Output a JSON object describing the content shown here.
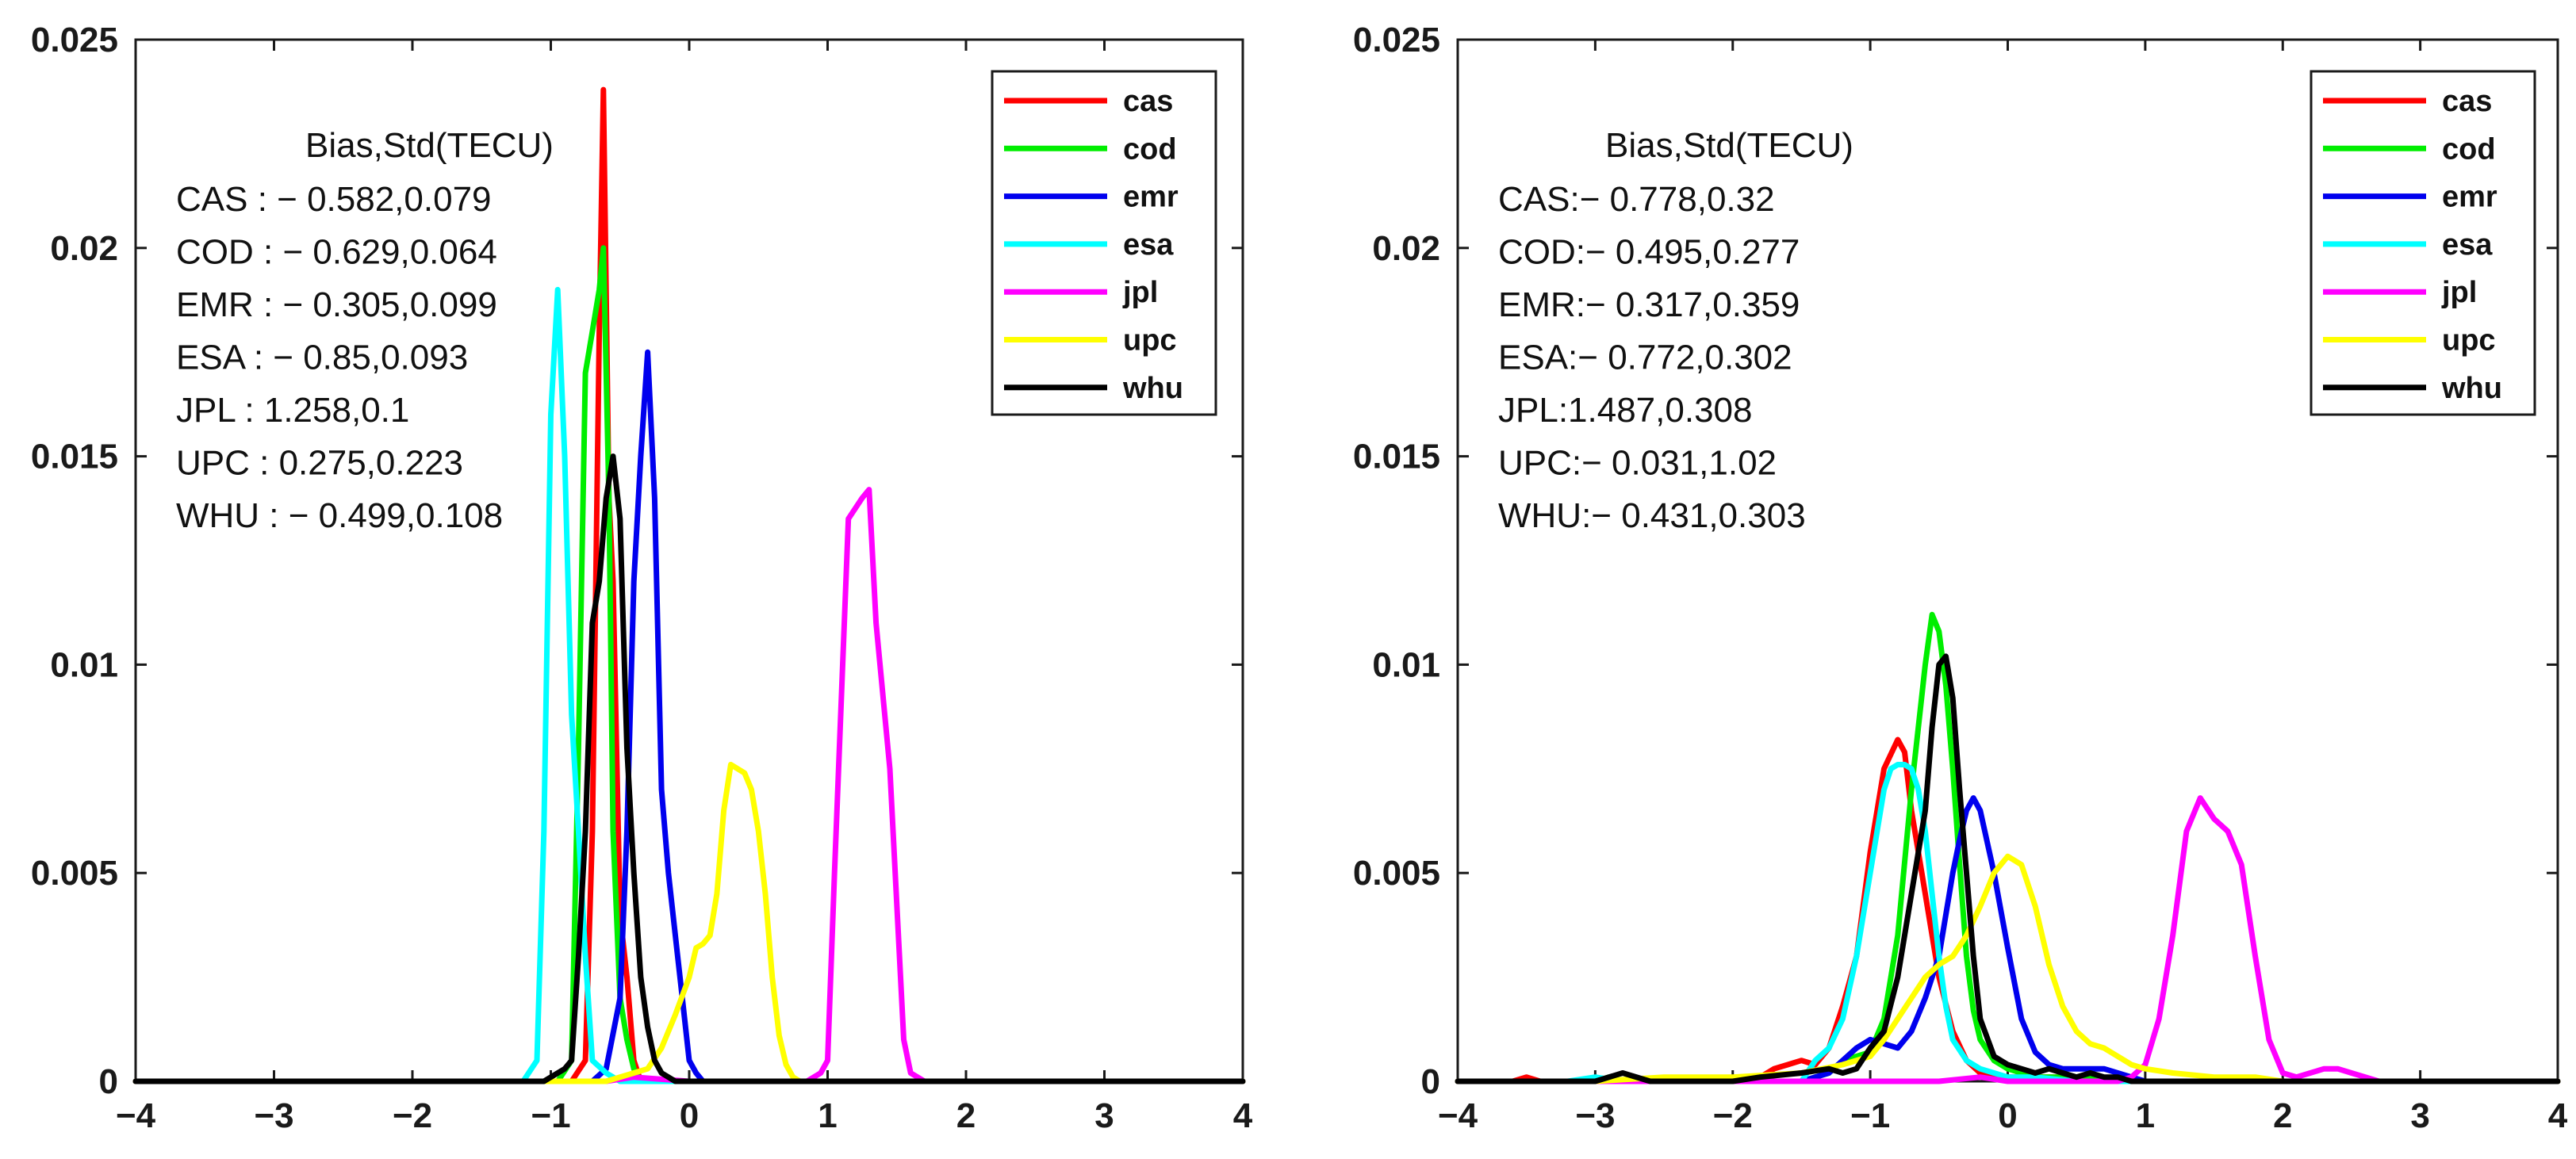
{
  "chart_data": [
    {
      "type": "line",
      "panel": "left",
      "xlim": [
        -4,
        4
      ],
      "ylim": [
        0,
        0.025
      ],
      "xticks": [
        "−4",
        "−3",
        "−2",
        "−1",
        "0",
        "1",
        "2",
        "3",
        "4"
      ],
      "yticks": [
        "0",
        "0.005",
        "0.01",
        "0.015",
        "0.02",
        "0.025"
      ],
      "legend_position": "top-right",
      "stats_title": "Bias,Std(TECU)",
      "stats": [
        "CAS : − 0.582,0.079",
        "COD : − 0.629,0.064",
        "EMR : − 0.305,0.099",
        "ESA : − 0.85,0.093",
        "JPL : 1.258,0.1",
        "UPC : 0.275,0.223",
        "WHU : − 0.499,0.108"
      ],
      "series": [
        {
          "name": "cas",
          "color": "#ff0000",
          "x": [
            -4,
            -1.0,
            -0.85,
            -0.75,
            -0.7,
            -0.65,
            -0.62,
            -0.58,
            -0.55,
            -0.5,
            -0.45,
            -0.4,
            -0.35,
            -0.3,
            4
          ],
          "y": [
            0,
            0,
            0,
            0.0005,
            0.006,
            0.018,
            0.0238,
            0.014,
            0.012,
            0.004,
            0.0025,
            0.0005,
            0,
            0,
            0
          ]
        },
        {
          "name": "cod",
          "color": "#00ee00",
          "x": [
            -4,
            -0.95,
            -0.85,
            -0.8,
            -0.75,
            -0.7,
            -0.65,
            -0.62,
            -0.58,
            -0.55,
            -0.5,
            -0.45,
            -0.4,
            -0.35,
            4
          ],
          "y": [
            0,
            0,
            0.0005,
            0.008,
            0.017,
            0.018,
            0.019,
            0.02,
            0.014,
            0.006,
            0.002,
            0.001,
            0.0003,
            0,
            0
          ]
        },
        {
          "name": "emr",
          "color": "#0000ee",
          "x": [
            -4,
            -0.7,
            -0.6,
            -0.5,
            -0.45,
            -0.4,
            -0.35,
            -0.3,
            -0.25,
            -0.2,
            -0.15,
            -0.1,
            -0.05,
            0,
            0.05,
            0.1,
            4
          ],
          "y": [
            0,
            0,
            0.0003,
            0.002,
            0.006,
            0.012,
            0.015,
            0.0175,
            0.014,
            0.007,
            0.005,
            0.0035,
            0.002,
            0.0005,
            0.0002,
            0,
            0
          ]
        },
        {
          "name": "esa",
          "color": "#00ffff",
          "x": [
            -4,
            -1.2,
            -1.1,
            -1.05,
            -1.0,
            -0.95,
            -0.9,
            -0.85,
            -0.8,
            -0.75,
            -0.7,
            -0.6,
            -0.5,
            4
          ],
          "y": [
            0,
            0,
            0.0005,
            0.006,
            0.016,
            0.019,
            0.015,
            0.0088,
            0.006,
            0.003,
            0.0005,
            0.0002,
            0,
            0
          ]
        },
        {
          "name": "jpl",
          "color": "#ff00ff",
          "x": [
            -4,
            -0.6,
            -0.4,
            0,
            0.85,
            0.95,
            1.0,
            1.05,
            1.15,
            1.25,
            1.3,
            1.35,
            1.45,
            1.55,
            1.6,
            1.7,
            4
          ],
          "y": [
            0,
            0,
            0.0001,
            0,
            0,
            0.0002,
            0.0005,
            0.005,
            0.0135,
            0.014,
            0.0142,
            0.011,
            0.0075,
            0.001,
            0.0002,
            0,
            0
          ]
        },
        {
          "name": "upc",
          "color": "#ffff00",
          "x": [
            -4,
            -0.6,
            -0.4,
            -0.3,
            -0.2,
            -0.1,
            0,
            0.05,
            0.1,
            0.15,
            0.2,
            0.25,
            0.3,
            0.35,
            0.4,
            0.45,
            0.5,
            0.55,
            0.6,
            0.65,
            0.7,
            0.75,
            0.8,
            0.85,
            0.9,
            4
          ],
          "y": [
            0,
            0,
            0.0002,
            0.0003,
            0.0008,
            0.0016,
            0.0025,
            0.0032,
            0.0033,
            0.0035,
            0.0045,
            0.0065,
            0.0076,
            0.0075,
            0.0074,
            0.007,
            0.006,
            0.0045,
            0.0025,
            0.0011,
            0.0004,
            0.0001,
            0,
            0,
            0,
            0
          ]
        },
        {
          "name": "whu",
          "color": "#000000",
          "x": [
            -4,
            -1.05,
            -1.0,
            -0.9,
            -0.85,
            -0.8,
            -0.75,
            -0.7,
            -0.65,
            -0.6,
            -0.55,
            -0.5,
            -0.45,
            -0.4,
            -0.35,
            -0.3,
            -0.25,
            -0.2,
            -0.15,
            -0.1,
            -0.05,
            4
          ],
          "y": [
            0,
            0,
            0.0001,
            0.0003,
            0.0005,
            0.003,
            0.006,
            0.011,
            0.012,
            0.014,
            0.015,
            0.0135,
            0.008,
            0.005,
            0.0025,
            0.0013,
            0.0005,
            0.0002,
            0.0001,
            0,
            0,
            0
          ]
        }
      ]
    },
    {
      "type": "line",
      "panel": "right",
      "xlim": [
        -4,
        4
      ],
      "ylim": [
        0,
        0.025
      ],
      "xticks": [
        "−4",
        "−3",
        "−2",
        "−1",
        "0",
        "1",
        "2",
        "3",
        "4"
      ],
      "yticks": [
        "0",
        "0.005",
        "0.01",
        "0.015",
        "0.02",
        "0.025"
      ],
      "legend_position": "top-right",
      "stats_title": "Bias,Std(TECU)",
      "stats": [
        "CAS:− 0.778,0.32",
        "COD:− 0.495,0.277",
        "EMR:− 0.317,0.359",
        "ESA:− 0.772,0.302",
        "JPL:1.487,0.308",
        "UPC:− 0.031,1.02",
        "WHU:− 0.431,0.303"
      ],
      "series": [
        {
          "name": "cas",
          "color": "#ff0000",
          "x": [
            -4,
            -3.6,
            -3.5,
            -3.4,
            -3.0,
            -2.5,
            -2.0,
            -1.8,
            -1.7,
            -1.6,
            -1.5,
            -1.4,
            -1.3,
            -1.2,
            -1.1,
            -1.0,
            -0.9,
            -0.8,
            -0.75,
            -0.7,
            -0.6,
            -0.5,
            -0.4,
            -0.3,
            -0.2,
            -0.1,
            0,
            0.5,
            1.0,
            1.5,
            4
          ],
          "y": [
            0,
            0,
            0.0001,
            0,
            0,
            0,
            0,
            0.0001,
            0.0003,
            0.0004,
            0.0005,
            0.0004,
            0.0008,
            0.0018,
            0.003,
            0.0055,
            0.0075,
            0.0082,
            0.0079,
            0.0065,
            0.0045,
            0.0025,
            0.0012,
            0.0005,
            0.0002,
            0.0001,
            0.0001,
            0.0001,
            0,
            0,
            0
          ]
        },
        {
          "name": "cod",
          "color": "#00ee00",
          "x": [
            -4,
            -3.0,
            -2.9,
            -2.8,
            -1.5,
            -1.3,
            -1.2,
            -1.1,
            -1.0,
            -0.9,
            -0.8,
            -0.7,
            -0.6,
            -0.55,
            -0.5,
            -0.45,
            -0.4,
            -0.35,
            -0.3,
            -0.25,
            -0.2,
            -0.1,
            0,
            0.1,
            0.2,
            0.5,
            1.0,
            4
          ],
          "y": [
            0,
            0,
            0.0001,
            0,
            0,
            0.0002,
            0.0005,
            0.0006,
            0.0007,
            0.0015,
            0.0035,
            0.007,
            0.01,
            0.0112,
            0.0108,
            0.0095,
            0.0075,
            0.0052,
            0.003,
            0.0017,
            0.001,
            0.0005,
            0.0003,
            0.0002,
            0.0001,
            0.0001,
            0,
            0
          ]
        },
        {
          "name": "emr",
          "color": "#0000ee",
          "x": [
            -4,
            -1.5,
            -1.3,
            -1.2,
            -1.1,
            -1.0,
            -0.9,
            -0.8,
            -0.7,
            -0.6,
            -0.5,
            -0.4,
            -0.35,
            -0.3,
            -0.25,
            -0.2,
            -0.1,
            0,
            0.1,
            0.2,
            0.3,
            0.4,
            0.5,
            0.6,
            0.7,
            0.8,
            0.9,
            1.0,
            4
          ],
          "y": [
            0,
            0,
            0.0002,
            0.0005,
            0.0008,
            0.001,
            0.0009,
            0.0008,
            0.0012,
            0.002,
            0.003,
            0.005,
            0.0058,
            0.0065,
            0.0068,
            0.0065,
            0.005,
            0.0032,
            0.0015,
            0.0007,
            0.0004,
            0.0003,
            0.0003,
            0.0003,
            0.0003,
            0.0002,
            0.0001,
            0,
            0
          ]
        },
        {
          "name": "esa",
          "color": "#00ffff",
          "x": [
            -4,
            -3.2,
            -3.0,
            -2.8,
            -2.0,
            -1.5,
            -1.4,
            -1.3,
            -1.2,
            -1.1,
            -1.0,
            -0.9,
            -0.85,
            -0.8,
            -0.75,
            -0.7,
            -0.65,
            -0.6,
            -0.55,
            -0.5,
            -0.45,
            -0.4,
            -0.3,
            -0.2,
            -0.1,
            0,
            0.2,
            0.5,
            4
          ],
          "y": [
            0,
            0,
            0.0001,
            0,
            0,
            0,
            0.0005,
            0.0008,
            0.0015,
            0.003,
            0.005,
            0.007,
            0.0075,
            0.0076,
            0.0076,
            0.0075,
            0.007,
            0.006,
            0.0045,
            0.003,
            0.0018,
            0.001,
            0.0005,
            0.0003,
            0.0002,
            0.0001,
            0.0001,
            0,
            0
          ]
        },
        {
          "name": "jpl",
          "color": "#ff00ff",
          "x": [
            -4,
            -0.5,
            -0.2,
            0,
            0.8,
            0.9,
            1.0,
            1.1,
            1.2,
            1.3,
            1.4,
            1.5,
            1.6,
            1.7,
            1.8,
            1.9,
            2.0,
            2.1,
            2.2,
            2.3,
            2.4,
            2.5,
            2.6,
            2.7,
            2.8,
            4
          ],
          "y": [
            0,
            0,
            0.0001,
            0,
            0,
            0.0001,
            0.0004,
            0.0015,
            0.0035,
            0.006,
            0.0068,
            0.0063,
            0.006,
            0.0052,
            0.003,
            0.001,
            0.0002,
            0.0001,
            0.0002,
            0.0003,
            0.0003,
            0.0002,
            0.0001,
            0,
            0,
            0
          ]
        },
        {
          "name": "upc",
          "color": "#ffff00",
          "x": [
            -4,
            -3.0,
            -2.5,
            -2.0,
            -1.5,
            -1.2,
            -1.0,
            -0.9,
            -0.8,
            -0.7,
            -0.6,
            -0.5,
            -0.4,
            -0.3,
            -0.2,
            -0.1,
            0,
            0.1,
            0.2,
            0.3,
            0.4,
            0.5,
            0.6,
            0.7,
            0.8,
            0.9,
            1.0,
            1.2,
            1.5,
            1.8,
            2.0,
            4
          ],
          "y": [
            0,
            0,
            0.0001,
            0.0001,
            0.0002,
            0.0004,
            0.0006,
            0.001,
            0.0015,
            0.002,
            0.0025,
            0.0028,
            0.003,
            0.0035,
            0.0042,
            0.005,
            0.0054,
            0.0052,
            0.0042,
            0.0028,
            0.0018,
            0.0012,
            0.0009,
            0.0008,
            0.0006,
            0.0004,
            0.0003,
            0.0002,
            0.0001,
            0.0001,
            0,
            0
          ]
        },
        {
          "name": "whu",
          "color": "#000000",
          "x": [
            -4,
            -3.0,
            -2.8,
            -2.6,
            -2.0,
            -1.8,
            -1.5,
            -1.3,
            -1.2,
            -1.1,
            -1.0,
            -0.9,
            -0.8,
            -0.7,
            -0.6,
            -0.55,
            -0.5,
            -0.45,
            -0.4,
            -0.35,
            -0.3,
            -0.25,
            -0.2,
            -0.1,
            0,
            0.1,
            0.2,
            0.3,
            0.4,
            0.5,
            0.6,
            0.7,
            0.8,
            0.9,
            1.0,
            4
          ],
          "y": [
            0,
            0,
            0.0002,
            0,
            0,
            0.0001,
            0.0002,
            0.0003,
            0.0002,
            0.0003,
            0.0008,
            0.0012,
            0.0025,
            0.0045,
            0.0065,
            0.0085,
            0.01,
            0.0102,
            0.0092,
            0.007,
            0.005,
            0.003,
            0.0015,
            0.0006,
            0.0004,
            0.0003,
            0.0002,
            0.0003,
            0.0002,
            0.0001,
            0.0002,
            0.0001,
            0.0001,
            0,
            0,
            0
          ]
        }
      ]
    }
  ]
}
